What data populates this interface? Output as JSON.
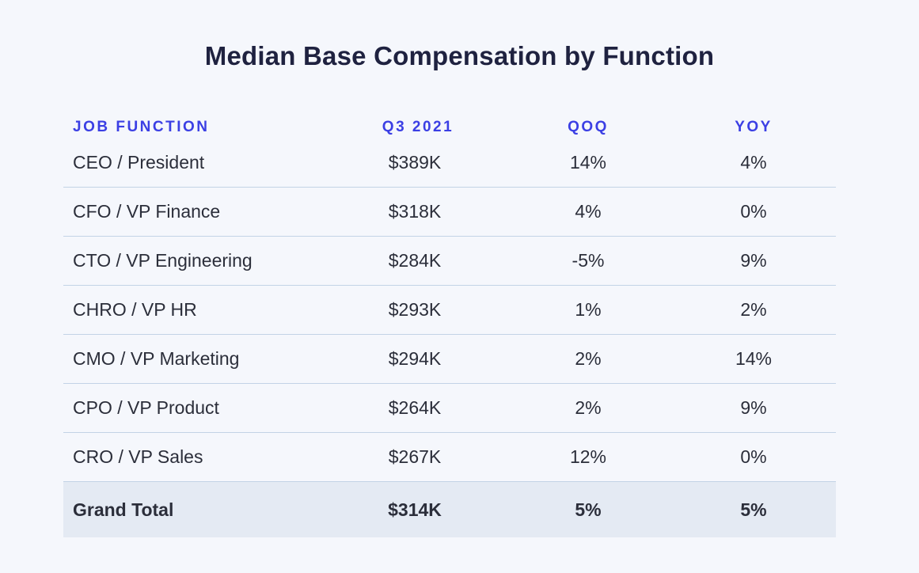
{
  "chart_data": {
    "type": "table",
    "title": "Median Base Compensation by Function",
    "columns": [
      "JOB FUNCTION",
      "Q3 2021",
      "QOQ",
      "YOY"
    ],
    "rows": [
      {
        "function": "CEO / President",
        "q3_2021": "$389K",
        "qoq": "14%",
        "yoy": "4%"
      },
      {
        "function": "CFO / VP Finance",
        "q3_2021": "$318K",
        "qoq": "4%",
        "yoy": "0%"
      },
      {
        "function": "CTO / VP Engineering",
        "q3_2021": "$284K",
        "qoq": "-5%",
        "yoy": "9%"
      },
      {
        "function": "CHRO / VP HR",
        "q3_2021": "$293K",
        "qoq": "1%",
        "yoy": "2%"
      },
      {
        "function": "CMO / VP Marketing",
        "q3_2021": "$294K",
        "qoq": "2%",
        "yoy": "14%"
      },
      {
        "function": "CPO / VP Product",
        "q3_2021": "$264K",
        "qoq": "2%",
        "yoy": "9%"
      },
      {
        "function": "CRO / VP Sales",
        "q3_2021": "$267K",
        "qoq": "12%",
        "yoy": "0%"
      }
    ],
    "total": {
      "function": "Grand Total",
      "q3_2021": "$314K",
      "qoq": "5%",
      "yoy": "5%"
    }
  },
  "colors": {
    "background": "#f5f7fc",
    "title": "#1f2240",
    "header": "#3b3fe4",
    "divider": "#c3d3e6",
    "total_row": "#e4eaf3"
  }
}
